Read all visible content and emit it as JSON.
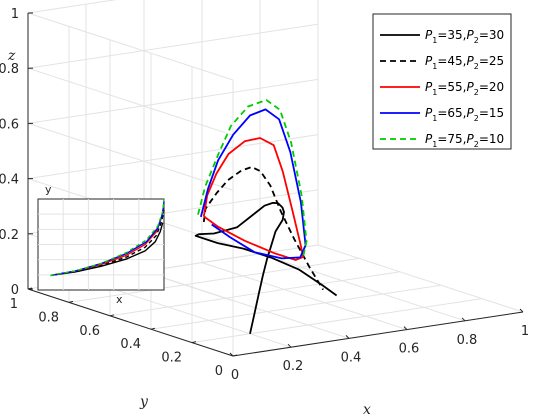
{
  "chart_data": {
    "type": "line",
    "dimensions": "3d",
    "xlabel": "x",
    "ylabel": "y",
    "zlabel": "z",
    "xlim": [
      0,
      1
    ],
    "ylim": [
      0,
      1
    ],
    "zlim": [
      0,
      1
    ],
    "x_ticks": [
      "0",
      "0.2",
      "0.4",
      "0.6",
      "0.8",
      "1"
    ],
    "y_ticks": [
      "0",
      "0.2",
      "0.4",
      "0.6",
      "0.8",
      "1"
    ],
    "z_ticks": [
      "0",
      "0.2",
      "0.4",
      "0.6",
      "0.8",
      "1"
    ],
    "grid": true,
    "legend_position": "top-right",
    "series": [
      {
        "name": "P1=35,P2=30",
        "label": {
          "a": "35",
          "b": "30"
        },
        "color": "#000000",
        "style": "solid",
        "x": [
          0.2,
          0.25,
          0.3,
          0.35,
          0.4,
          0.45,
          0.5,
          0.56,
          0.6,
          0.63,
          0.65,
          0.66,
          0.66,
          0.64,
          0.58,
          0.5,
          0.42,
          0.38,
          0.38,
          0.4,
          0.46,
          0.52,
          0.58,
          0.62,
          0.64
        ],
        "y": [
          0.2,
          0.25,
          0.3,
          0.35,
          0.4,
          0.45,
          0.5,
          0.55,
          0.6,
          0.65,
          0.7,
          0.74,
          0.78,
          0.8,
          0.8,
          0.8,
          0.76,
          0.72,
          0.68,
          0.64,
          0.6,
          0.55,
          0.5,
          0.44,
          0.4
        ],
        "z": [
          0.0,
          0.05,
          0.1,
          0.15,
          0.19,
          0.22,
          0.25,
          0.27,
          0.28,
          0.28,
          0.28,
          0.27,
          0.25,
          0.22,
          0.18,
          0.17,
          0.19,
          0.2,
          0.2,
          0.19,
          0.17,
          0.14,
          0.1,
          0.05,
          0.02
        ]
      },
      {
        "name": "P1=45,P2=25",
        "label": {
          "a": "45",
          "b": "25"
        },
        "color": "#000000",
        "style": "dashed",
        "x": [
          0.38,
          0.4,
          0.46,
          0.52,
          0.58,
          0.63,
          0.66,
          0.68,
          0.68,
          0.67,
          0.66,
          0.65
        ],
        "y": [
          0.68,
          0.7,
          0.73,
          0.76,
          0.78,
          0.8,
          0.8,
          0.78,
          0.73,
          0.65,
          0.56,
          0.48
        ],
        "z": [
          0.26,
          0.3,
          0.34,
          0.37,
          0.39,
          0.39,
          0.37,
          0.32,
          0.24,
          0.16,
          0.08,
          0.02
        ]
      },
      {
        "name": "P1=55,P2=20",
        "label": {
          "a": "55",
          "b": "20"
        },
        "color": "#ff0000",
        "style": "solid",
        "x": [
          0.38,
          0.42,
          0.48,
          0.55,
          0.62,
          0.68,
          0.72,
          0.73,
          0.72,
          0.7,
          0.68,
          0.64,
          0.58,
          0.5,
          0.42,
          0.38
        ],
        "y": [
          0.68,
          0.72,
          0.76,
          0.8,
          0.82,
          0.83,
          0.82,
          0.79,
          0.73,
          0.66,
          0.62,
          0.6,
          0.62,
          0.65,
          0.67,
          0.68
        ],
        "z": [
          0.28,
          0.34,
          0.4,
          0.45,
          0.48,
          0.48,
          0.45,
          0.36,
          0.24,
          0.13,
          0.1,
          0.1,
          0.13,
          0.18,
          0.24,
          0.28
        ]
      },
      {
        "name": "P1=65,P2=15",
        "label": {
          "a": "65",
          "b": "15"
        },
        "color": "#0000ff",
        "style": "solid",
        "x": [
          0.37,
          0.43,
          0.5,
          0.58,
          0.66,
          0.72,
          0.76,
          0.77,
          0.75,
          0.71,
          0.67,
          0.6,
          0.52,
          0.45,
          0.4
        ],
        "y": [
          0.68,
          0.73,
          0.78,
          0.82,
          0.85,
          0.86,
          0.85,
          0.81,
          0.73,
          0.65,
          0.62,
          0.61,
          0.63,
          0.65,
          0.67
        ],
        "z": [
          0.28,
          0.36,
          0.44,
          0.51,
          0.56,
          0.57,
          0.53,
          0.42,
          0.26,
          0.13,
          0.1,
          0.11,
          0.14,
          0.2,
          0.25
        ]
      },
      {
        "name": "P1=75,P2=10",
        "label": {
          "a": "75",
          "b": "10"
        },
        "color": "#00cc00",
        "style": "dashed",
        "x": [
          0.36,
          0.42,
          0.5,
          0.58,
          0.66,
          0.73,
          0.77,
          0.78,
          0.76,
          0.72,
          0.68
        ],
        "y": [
          0.68,
          0.73,
          0.78,
          0.83,
          0.86,
          0.87,
          0.86,
          0.82,
          0.74,
          0.66,
          0.62
        ],
        "z": [
          0.29,
          0.37,
          0.46,
          0.54,
          0.59,
          0.6,
          0.56,
          0.45,
          0.28,
          0.14,
          0.1
        ]
      }
    ],
    "inset": {
      "xlabel": "x",
      "ylabel": "y",
      "curves": [
        {
          "color": "#000000",
          "style": "solid",
          "x": [
            0.1,
            0.3,
            0.5,
            0.7,
            0.85,
            0.93,
            0.97,
            0.99
          ],
          "y": [
            0.16,
            0.2,
            0.26,
            0.34,
            0.43,
            0.53,
            0.64,
            0.74
          ]
        },
        {
          "color": "#000000",
          "style": "dashed",
          "x": [
            0.1,
            0.3,
            0.5,
            0.7,
            0.85,
            0.94,
            0.98,
            1.0
          ],
          "y": [
            0.16,
            0.2,
            0.27,
            0.36,
            0.47,
            0.6,
            0.75,
            0.88
          ]
        },
        {
          "color": "#ff0000",
          "style": "solid",
          "x": [
            0.1,
            0.3,
            0.5,
            0.7,
            0.85,
            0.94,
            0.98,
            1.0
          ],
          "y": [
            0.16,
            0.21,
            0.28,
            0.38,
            0.5,
            0.64,
            0.8,
            0.94
          ]
        },
        {
          "color": "#0000ff",
          "style": "solid",
          "x": [
            0.1,
            0.3,
            0.5,
            0.7,
            0.86,
            0.95,
            0.99,
            1.0
          ],
          "y": [
            0.16,
            0.21,
            0.29,
            0.4,
            0.53,
            0.68,
            0.84,
            0.97
          ]
        },
        {
          "color": "#00cc00",
          "style": "dashed",
          "x": [
            0.1,
            0.3,
            0.5,
            0.7,
            0.86,
            0.95,
            0.99,
            1.0
          ],
          "y": [
            0.16,
            0.21,
            0.29,
            0.41,
            0.55,
            0.7,
            0.86,
            1.0
          ]
        }
      ]
    }
  }
}
